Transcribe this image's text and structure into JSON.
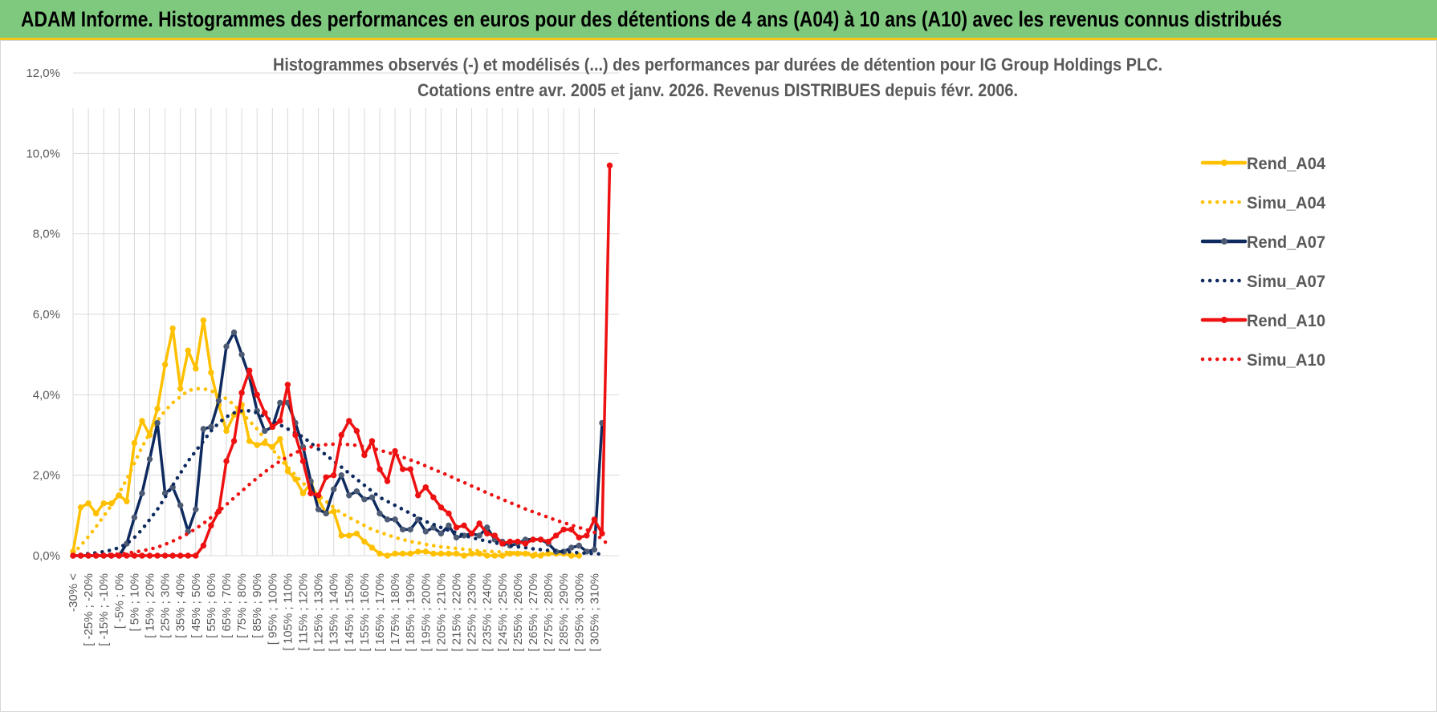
{
  "header": {
    "title": "ADAM Informe. Histogrammes des performances en euros pour des détentions de 4 ans (A04) à 10 ans (A10) avec les revenus connus distribués"
  },
  "chart_data": {
    "type": "line",
    "title_lines": [
      "Histogrammes observés (-) et modélisés (...) des performances par durées de détention pour IG Group Holdings PLC.",
      "Cotations entre avr. 2005 et janv. 2026. Revenus DISTRIBUES depuis févr. 2006."
    ],
    "ylim": [
      0,
      12
    ],
    "yticks": [
      0,
      2,
      4,
      6,
      8,
      10,
      12
    ],
    "ytick_labels": [
      "0,0%",
      "2,0%",
      "4,0%",
      "6,0%",
      "8,0%",
      "10,0%",
      "12,0%"
    ],
    "legend_position": "right",
    "xtick_labels": [
      "-30% <",
      "[ -25% ; -20%",
      "[ -15% ; -10%",
      "[ -5% ; 0%",
      "[ 5% ; 10%",
      "[ 15% ; 20%",
      "[ 25% ; 30%",
      "[ 35% ; 40%",
      "[ 45% ; 50%",
      "[ 55% ; 60%",
      "[ 65% ; 70%",
      "[ 75% ; 80%",
      "[ 85% ; 90%",
      "[ 95% ; 100%",
      "[ 105% ; 110%",
      "[ 115% ; 120%",
      "[ 125% ; 130%",
      "[ 135% ; 140%",
      "[ 145% ; 150%",
      "[ 155% ; 160%",
      "[ 165% ; 170%",
      "[ 175% ; 180%",
      "[ 185% ; 190%",
      "[ 195% ; 200%",
      "[ 205% ; 210%",
      "[ 215% ; 220%",
      "[ 225% ; 230%",
      "[ 235% ; 240%",
      "[ 245% ; 250%",
      "[ 255% ; 260%",
      "[ 265% ; 270%",
      "[ 275% ; 280%",
      "[ 285% ; 290%",
      "[ 295% ; 300%",
      "[ 305% ; 310%"
    ],
    "series": [
      {
        "name": "Rend_A04",
        "style": "solid",
        "color": "#ffc000",
        "values": [
          0.1,
          1.2,
          1.3,
          1.05,
          1.3,
          1.3,
          1.5,
          1.35,
          2.8,
          3.35,
          3.0,
          3.65,
          4.75,
          5.65,
          4.15,
          5.1,
          4.65,
          5.85,
          4.55,
          3.75,
          3.1,
          3.5,
          3.75,
          2.85,
          2.75,
          2.8,
          2.7,
          2.9,
          2.1,
          1.9,
          1.55,
          1.8,
          1.4,
          1.05,
          1.1,
          0.5,
          0.5,
          0.55,
          0.35,
          0.2,
          0.05,
          0.0,
          0.05,
          0.05,
          0.05,
          0.1,
          0.1,
          0.05,
          0.05,
          0.05,
          0.05,
          0.0,
          0.05,
          0.05,
          0.0,
          0.0,
          0.0,
          0.05,
          0.05,
          0.05,
          0.0,
          0.0,
          0.05,
          0.05,
          0.05,
          0.0,
          0.0
        ]
      },
      {
        "name": "Simu_A04",
        "style": "dotted",
        "color": "#ffc000",
        "values": [
          0.05,
          0.25,
          0.47,
          0.72,
          0.98,
          1.25,
          1.55,
          1.9,
          2.3,
          2.7,
          3.05,
          3.35,
          3.6,
          3.8,
          3.95,
          4.1,
          4.15,
          4.15,
          4.1,
          4.0,
          3.9,
          3.75,
          3.55,
          3.35,
          3.15,
          2.9,
          2.65,
          2.4,
          2.2,
          2.0,
          1.8,
          1.65,
          1.5,
          1.35,
          1.2,
          1.05,
          0.95,
          0.85,
          0.75,
          0.65,
          0.58,
          0.52,
          0.45,
          0.4,
          0.35,
          0.32,
          0.28,
          0.25,
          0.22,
          0.2,
          0.18,
          0.16,
          0.14,
          0.12,
          0.11,
          0.1,
          0.09,
          0.08,
          0.07,
          0.06,
          0.06,
          0.05,
          0.05,
          0.04,
          0.04,
          0.03,
          0.03
        ]
      },
      {
        "name": "Rend_A07",
        "style": "solid",
        "color": "#0e2a5e",
        "values": [
          0,
          0,
          0,
          0,
          0,
          0,
          0,
          0.3,
          0.95,
          1.55,
          2.4,
          3.3,
          1.55,
          1.7,
          1.25,
          0.6,
          1.15,
          3.15,
          3.2,
          3.85,
          5.2,
          5.55,
          5.0,
          4.45,
          3.6,
          3.1,
          3.2,
          3.8,
          3.8,
          3.3,
          2.7,
          1.85,
          1.15,
          1.05,
          1.65,
          2.0,
          1.5,
          1.6,
          1.4,
          1.45,
          1.05,
          0.9,
          0.9,
          0.65,
          0.65,
          0.9,
          0.6,
          0.7,
          0.55,
          0.75,
          0.45,
          0.5,
          0.55,
          0.5,
          0.7,
          0.4,
          0.35,
          0.25,
          0.3,
          0.4,
          0.4,
          0.4,
          0.3,
          0.1,
          0.1,
          0.2,
          0.25,
          0.1,
          0.15,
          3.3
        ]
      },
      {
        "name": "Simu_A07",
        "style": "dotted",
        "color": "#0e2a5e",
        "values": [
          0.02,
          0.03,
          0.05,
          0.07,
          0.1,
          0.14,
          0.2,
          0.3,
          0.45,
          0.65,
          0.9,
          1.15,
          1.45,
          1.75,
          2.05,
          2.35,
          2.6,
          2.85,
          3.1,
          3.3,
          3.45,
          3.55,
          3.6,
          3.6,
          3.55,
          3.45,
          3.35,
          3.25,
          3.15,
          3.05,
          2.95,
          2.8,
          2.65,
          2.5,
          2.35,
          2.2,
          2.05,
          1.9,
          1.75,
          1.6,
          1.45,
          1.35,
          1.25,
          1.15,
          1.05,
          0.95,
          0.85,
          0.78,
          0.7,
          0.63,
          0.57,
          0.5,
          0.45,
          0.4,
          0.36,
          0.32,
          0.28,
          0.25,
          0.22,
          0.2,
          0.17,
          0.15,
          0.13,
          0.12,
          0.1,
          0.09,
          0.07,
          0.06,
          0.05,
          0.04
        ]
      },
      {
        "name": "Rend_A10",
        "style": "solid",
        "color": "#ee1111",
        "values": [
          0,
          0,
          0,
          0,
          0,
          0,
          0,
          0,
          0,
          0,
          0,
          0,
          0,
          0,
          0,
          0,
          0,
          0.25,
          0.75,
          1.1,
          2.35,
          2.85,
          4.05,
          4.6,
          4.0,
          3.55,
          3.2,
          3.35,
          4.25,
          3.0,
          2.35,
          1.55,
          1.5,
          1.95,
          2.0,
          3.0,
          3.35,
          3.1,
          2.5,
          2.85,
          2.15,
          1.85,
          2.6,
          2.15,
          2.15,
          1.5,
          1.7,
          1.45,
          1.2,
          1.05,
          0.7,
          0.75,
          0.55,
          0.8,
          0.55,
          0.5,
          0.3,
          0.35,
          0.35,
          0.3,
          0.4,
          0.4,
          0.35,
          0.5,
          0.65,
          0.65,
          0.45,
          0.5,
          0.9,
          0.55,
          9.7
        ]
      },
      {
        "name": "Simu_A10",
        "style": "dotted",
        "color": "#ee1111",
        "values": [
          0.0,
          0.0,
          0.01,
          0.01,
          0.02,
          0.03,
          0.04,
          0.06,
          0.09,
          0.12,
          0.16,
          0.21,
          0.28,
          0.36,
          0.45,
          0.55,
          0.67,
          0.8,
          0.95,
          1.1,
          1.27,
          1.44,
          1.6,
          1.77,
          1.93,
          2.08,
          2.22,
          2.35,
          2.46,
          2.56,
          2.64,
          2.7,
          2.74,
          2.76,
          2.77,
          2.77,
          2.76,
          2.74,
          2.71,
          2.67,
          2.62,
          2.57,
          2.51,
          2.45,
          2.38,
          2.31,
          2.23,
          2.15,
          2.07,
          1.99,
          1.9,
          1.82,
          1.73,
          1.65,
          1.56,
          1.48,
          1.4,
          1.32,
          1.24,
          1.16,
          1.09,
          1.02,
          0.95,
          0.88,
          0.82,
          0.76,
          0.7,
          0.64,
          0.58,
          0.4,
          0.25
        ]
      }
    ]
  }
}
